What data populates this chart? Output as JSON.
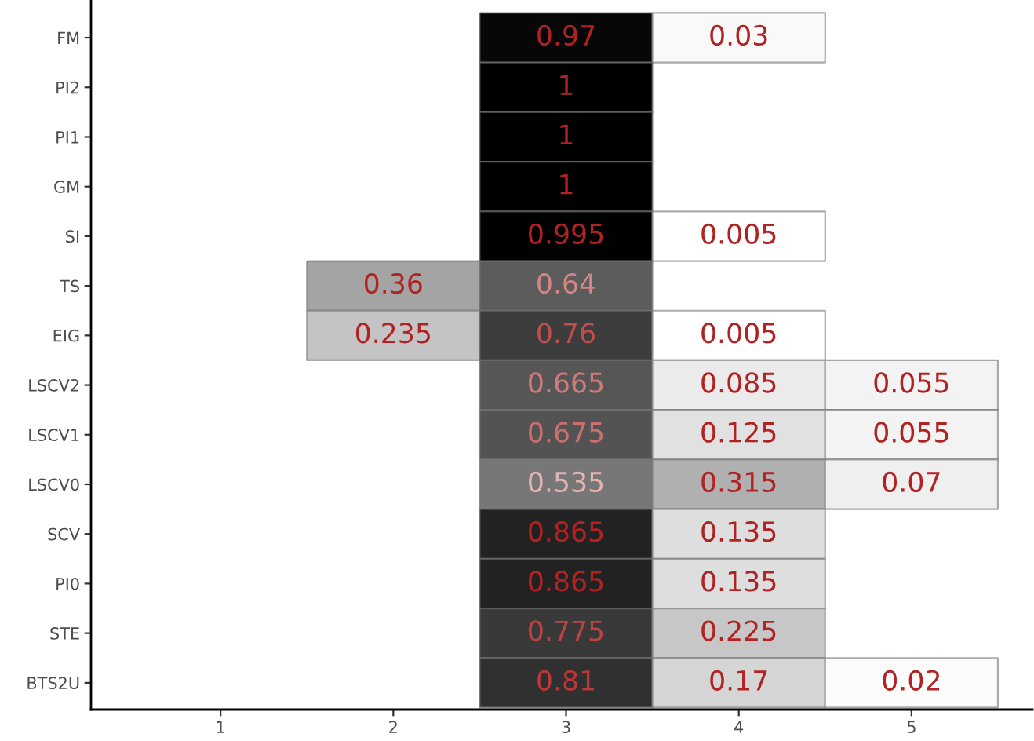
{
  "chart_data": {
    "type": "heatmap",
    "categories": [
      "1",
      "2",
      "3",
      "4",
      "5"
    ],
    "y_categories": [
      "FM",
      "PI2",
      "PI1",
      "GM",
      "SI",
      "TS",
      "EIG",
      "LSCV2",
      "LSCV1",
      "LSCV0",
      "SCV",
      "PI0",
      "STE",
      "BTS2U"
    ],
    "cells": [
      [
        null,
        null,
        0.97,
        0.03,
        null
      ],
      [
        null,
        null,
        1,
        null,
        null
      ],
      [
        null,
        null,
        1,
        null,
        null
      ],
      [
        null,
        null,
        1,
        null,
        null
      ],
      [
        null,
        null,
        0.995,
        0.005,
        null
      ],
      [
        null,
        0.36,
        0.64,
        null,
        null
      ],
      [
        null,
        0.235,
        0.76,
        0.005,
        null
      ],
      [
        null,
        null,
        0.665,
        0.085,
        0.055
      ],
      [
        null,
        null,
        0.675,
        0.125,
        0.055
      ],
      [
        null,
        null,
        0.535,
        0.315,
        0.07
      ],
      [
        null,
        null,
        0.865,
        0.135,
        null
      ],
      [
        null,
        null,
        0.865,
        0.135,
        null
      ],
      [
        null,
        null,
        0.775,
        0.225,
        null
      ],
      [
        null,
        null,
        0.81,
        0.17,
        0.02
      ]
    ],
    "colors": [
      "#ffffff",
      "#000000"
    ],
    "data_labels": true
  }
}
